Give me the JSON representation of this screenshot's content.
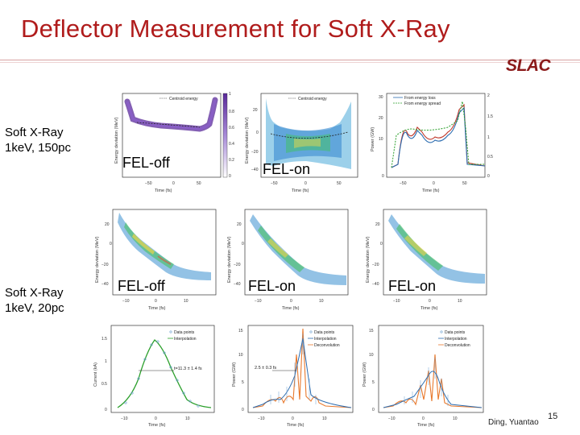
{
  "slide": {
    "title": "Deflector Measurement for Soft X-Ray",
    "logo": "SLAC",
    "author": "Ding, Yuantao",
    "page_number": "15"
  },
  "rows": [
    {
      "line1": "Soft X-Ray",
      "line2": "1keV, 150pc"
    },
    {
      "line1": "Soft X-Ray",
      "line2": "1keV, 20pc"
    }
  ],
  "panel_labels": {
    "fel_off": "FEL-off",
    "fel_on": "FEL-on"
  },
  "axes": {
    "energy_deviation": "Energy deviation (MeV)",
    "time": "Time (fs)",
    "power": "Power (GW)",
    "current": "Current (kA)"
  },
  "legends": {
    "centroid": "Centroid energy",
    "energy_loss": "From energy loss",
    "energy_spread": "From energy spread",
    "data_points": "Data points",
    "interpolation": "Interpolation",
    "deconvolution": "Deconvolution"
  },
  "annotations": {
    "fwhm_current": "t=11.3 ± 1.4 fs",
    "fwhm_power": "2.5 ± 0.3 fs"
  },
  "colors": {
    "title": "#b01c1c",
    "logo": "#8b1a1a"
  }
}
